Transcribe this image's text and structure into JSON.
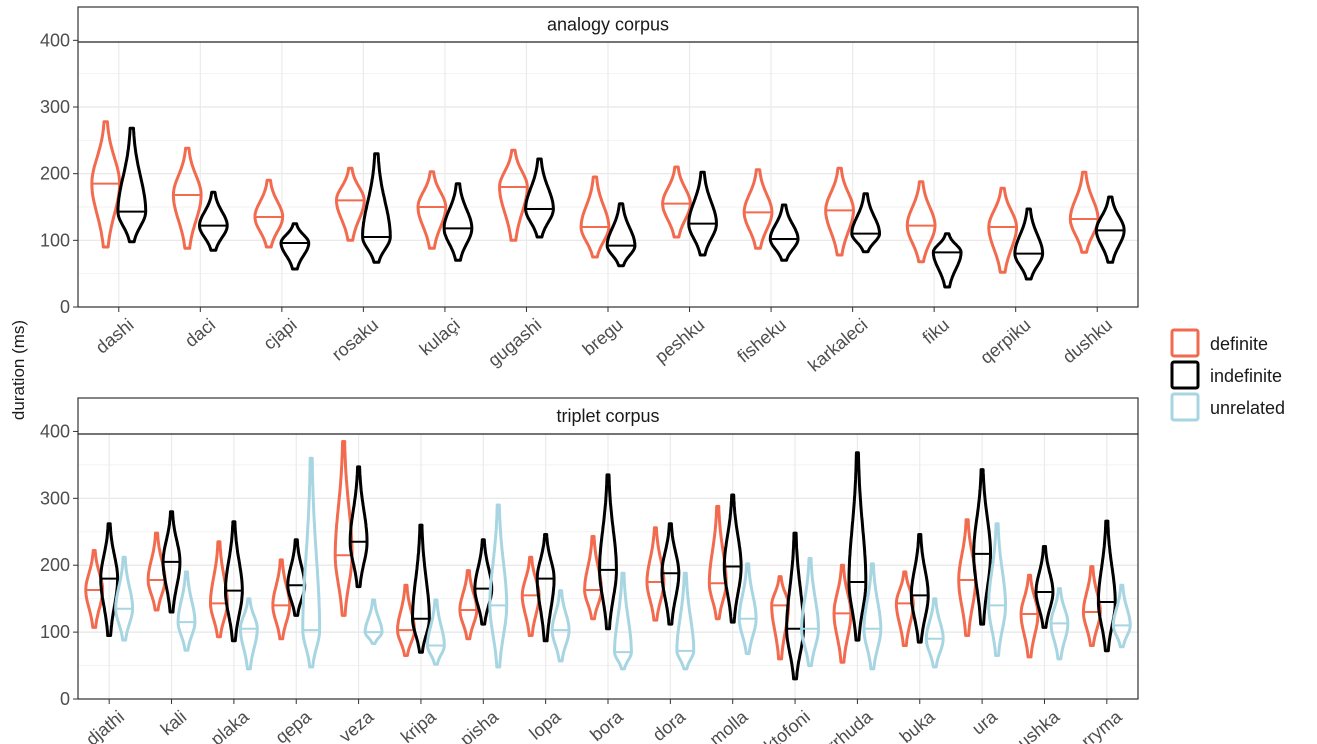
{
  "chart_data": {
    "type": "violin",
    "ylabel": "duration (ms)",
    "ylim": [
      0,
      450
    ],
    "yticks": [
      0,
      100,
      200,
      300,
      400
    ],
    "grid": true,
    "legend": {
      "placement": "right",
      "entries": [
        {
          "label": "definite",
          "color": "#F26B4F"
        },
        {
          "label": "indefinite",
          "color": "#000000"
        },
        {
          "label": "unrelated",
          "color": "#A8D5E2"
        }
      ]
    },
    "panels": [
      {
        "title": "analogy corpus",
        "categories": [
          "dashi",
          "daci",
          "cjapi",
          "rosaku",
          "kulaçi",
          "gugashi",
          "bregu",
          "peshku",
          "fisheku",
          "karkaleci",
          "fiku",
          "qerpiku",
          "dushku"
        ],
        "series": [
          {
            "name": "definite",
            "min": [
              90,
              88,
              90,
              100,
              88,
              100,
              75,
              105,
              88,
              78,
              68,
              52,
              82
            ],
            "median": [
              185,
              168,
              135,
              160,
              150,
              180,
              120,
              155,
              142,
              145,
              122,
              120,
              132
            ],
            "max": [
              278,
              238,
              190,
              208,
              203,
              235,
              195,
              210,
              206,
              208,
              188,
              178,
              202
            ]
          },
          {
            "name": "indefinite",
            "min": [
              98,
              85,
              57,
              67,
              70,
              105,
              62,
              78,
              70,
              83,
              30,
              42,
              67
            ],
            "median": [
              143,
              122,
              96,
              105,
              118,
              147,
              92,
              125,
              102,
              110,
              82,
              80,
              115
            ],
            "max": [
              268,
              172,
              125,
              230,
              185,
              222,
              155,
              202,
              153,
              170,
              110,
              147,
              165
            ]
          }
        ]
      },
      {
        "title": "triplet corpus",
        "categories": [
          "djathi",
          "kali",
          "plaka",
          "qepa",
          "veza",
          "kripa",
          "pisha",
          "lopa",
          "bora",
          "dora",
          "molla",
          "diktofoni",
          "rrhuda",
          "buka",
          "ura",
          "pushka",
          "rryma"
        ],
        "series": [
          {
            "name": "definite",
            "min": [
              107,
              133,
              93,
              90,
              125,
              65,
              90,
              95,
              120,
              118,
              120,
              60,
              55,
              80,
              95,
              63,
              80
            ],
            "median": [
              163,
              178,
              143,
              140,
              215,
              103,
              133,
              155,
              163,
              175,
              173,
              140,
              128,
              143,
              178,
              127,
              130
            ],
            "max": [
              222,
              248,
              235,
              208,
              385,
              170,
              192,
              212,
              243,
              256,
              288,
              183,
              200,
              190,
              268,
              185,
              198
            ]
          },
          {
            "name": "indefinite",
            "min": [
              95,
              130,
              87,
              125,
              168,
              70,
              112,
              87,
              105,
              112,
              115,
              30,
              88,
              85,
              112,
              107,
              72
            ],
            "median": [
              180,
              205,
              162,
              170,
              235,
              120,
              165,
              180,
              193,
              188,
              198,
              105,
              175,
              155,
              217,
              160,
              145
            ],
            "max": [
              262,
              280,
              265,
              238,
              347,
              260,
              238,
              246,
              335,
              262,
              305,
              248,
              368,
              246,
              343,
              228,
              266
            ]
          },
          {
            "name": "unrelated",
            "min": [
              88,
              73,
              45,
              48,
              83,
              52,
              48,
              57,
              45,
              45,
              68,
              50,
              45,
              48,
              65,
              60,
              78
            ],
            "median": [
              135,
              115,
              105,
              103,
              100,
              80,
              140,
              103,
              70,
              72,
              120,
              105,
              105,
              90,
              140,
              113,
              110
            ],
            "max": [
              212,
              190,
              150,
              360,
              148,
              148,
              290,
              162,
              188,
              188,
              202,
              210,
              202,
              150,
              262,
              165,
              170
            ]
          }
        ]
      }
    ]
  }
}
